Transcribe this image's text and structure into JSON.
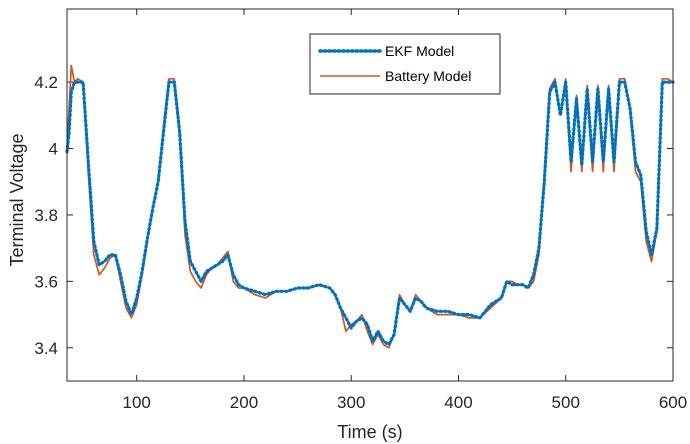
{
  "chart_data": {
    "type": "line",
    "xlabel": "Time (s)",
    "ylabel": "Terminal Voltage",
    "xlim": [
      35,
      600
    ],
    "ylim": [
      3.3,
      4.42
    ],
    "xticks": [
      100,
      200,
      300,
      400,
      500,
      600
    ],
    "yticks": [
      3.4,
      3.6,
      3.8,
      4.0,
      4.2
    ],
    "ytick_labels": [
      "3.4",
      "3.6",
      "3.8",
      "4",
      "4.2"
    ],
    "grid": false,
    "legend_position": "top-right",
    "series": [
      {
        "name": "EKF Model",
        "color": "#0072BD",
        "style": "dotted",
        "x": [
          35,
          37,
          39,
          42,
          45,
          50,
          55,
          60,
          65,
          70,
          75,
          80,
          85,
          90,
          95,
          100,
          105,
          110,
          115,
          120,
          125,
          130,
          135,
          140,
          145,
          150,
          155,
          160,
          165,
          170,
          175,
          180,
          185,
          190,
          195,
          200,
          210,
          220,
          230,
          240,
          250,
          260,
          270,
          280,
          285,
          290,
          295,
          300,
          305,
          310,
          315,
          320,
          325,
          330,
          335,
          340,
          345,
          350,
          355,
          360,
          365,
          370,
          380,
          390,
          400,
          410,
          420,
          430,
          440,
          445,
          450,
          455,
          460,
          465,
          470,
          475,
          480,
          485,
          490,
          495,
          500,
          505,
          510,
          515,
          520,
          525,
          530,
          535,
          540,
          545,
          550,
          555,
          560,
          565,
          570,
          575,
          580,
          585,
          590,
          595,
          600
        ],
        "y": [
          3.99,
          4.05,
          4.17,
          4.2,
          4.2,
          4.2,
          3.95,
          3.72,
          3.65,
          3.66,
          3.68,
          3.68,
          3.62,
          3.54,
          3.5,
          3.55,
          3.63,
          3.73,
          3.82,
          3.9,
          4.05,
          4.2,
          4.2,
          4.05,
          3.78,
          3.66,
          3.63,
          3.6,
          3.63,
          3.64,
          3.65,
          3.66,
          3.68,
          3.62,
          3.59,
          3.58,
          3.57,
          3.56,
          3.57,
          3.57,
          3.58,
          3.58,
          3.59,
          3.58,
          3.56,
          3.52,
          3.49,
          3.46,
          3.48,
          3.49,
          3.47,
          3.42,
          3.45,
          3.42,
          3.41,
          3.44,
          3.55,
          3.53,
          3.51,
          3.55,
          3.54,
          3.52,
          3.51,
          3.51,
          3.5,
          3.5,
          3.49,
          3.53,
          3.55,
          3.6,
          3.59,
          3.59,
          3.59,
          3.58,
          3.62,
          3.7,
          3.9,
          4.17,
          4.2,
          4.1,
          4.2,
          3.96,
          4.15,
          3.95,
          4.18,
          3.96,
          4.18,
          3.96,
          4.18,
          3.96,
          4.2,
          4.2,
          4.12,
          3.96,
          3.92,
          3.75,
          3.68,
          3.76,
          4.2,
          4.2,
          4.2
        ]
      },
      {
        "name": "Battery Model",
        "color": "#D95319",
        "style": "solid",
        "x": [
          35,
          37,
          39,
          42,
          45,
          50,
          55,
          60,
          65,
          70,
          75,
          80,
          85,
          90,
          95,
          100,
          105,
          110,
          115,
          120,
          125,
          130,
          135,
          140,
          145,
          150,
          155,
          160,
          165,
          170,
          175,
          180,
          185,
          190,
          195,
          200,
          210,
          220,
          230,
          240,
          250,
          260,
          270,
          280,
          285,
          290,
          295,
          300,
          305,
          310,
          315,
          320,
          325,
          330,
          335,
          340,
          345,
          350,
          355,
          360,
          365,
          370,
          380,
          390,
          400,
          410,
          420,
          430,
          440,
          445,
          450,
          455,
          460,
          465,
          470,
          475,
          480,
          485,
          490,
          495,
          500,
          505,
          510,
          515,
          520,
          525,
          530,
          535,
          540,
          545,
          550,
          555,
          560,
          565,
          570,
          575,
          580,
          585,
          590,
          595,
          600
        ],
        "y": [
          4.0,
          4.12,
          4.25,
          4.2,
          4.21,
          4.2,
          3.92,
          3.68,
          3.62,
          3.64,
          3.67,
          3.68,
          3.6,
          3.52,
          3.49,
          3.53,
          3.62,
          3.72,
          3.82,
          3.9,
          4.06,
          4.21,
          4.21,
          4.06,
          3.74,
          3.63,
          3.6,
          3.58,
          3.62,
          3.64,
          3.65,
          3.67,
          3.69,
          3.6,
          3.58,
          3.58,
          3.56,
          3.55,
          3.57,
          3.57,
          3.58,
          3.58,
          3.59,
          3.58,
          3.56,
          3.52,
          3.45,
          3.47,
          3.48,
          3.5,
          3.45,
          3.41,
          3.44,
          3.41,
          3.4,
          3.44,
          3.56,
          3.53,
          3.51,
          3.56,
          3.54,
          3.52,
          3.5,
          3.5,
          3.5,
          3.49,
          3.49,
          3.52,
          3.55,
          3.6,
          3.6,
          3.59,
          3.59,
          3.58,
          3.6,
          3.68,
          3.92,
          4.18,
          4.21,
          4.1,
          4.21,
          3.93,
          4.16,
          3.93,
          4.19,
          3.93,
          4.19,
          3.93,
          4.19,
          3.93,
          4.21,
          4.21,
          4.12,
          3.93,
          3.9,
          3.72,
          3.66,
          3.75,
          4.21,
          4.21,
          4.2
        ]
      }
    ]
  }
}
